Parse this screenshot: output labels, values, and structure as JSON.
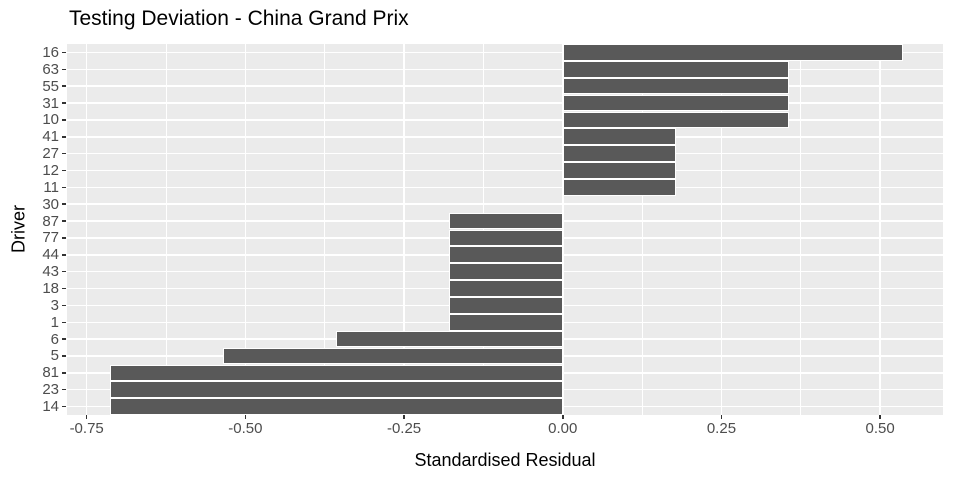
{
  "chart_data": {
    "type": "bar",
    "orientation": "horizontal",
    "title": "Testing Deviation - China Grand Prix",
    "xlabel": "Standardised Residual",
    "ylabel": "Driver",
    "categories": [
      "16",
      "63",
      "55",
      "31",
      "10",
      "41",
      "27",
      "12",
      "11",
      "30",
      "87",
      "77",
      "44",
      "43",
      "18",
      "3",
      "1",
      "6",
      "5",
      "81",
      "23",
      "14"
    ],
    "values": [
      0.536,
      0.357,
      0.357,
      0.357,
      0.357,
      0.179,
      0.179,
      0.179,
      0.179,
      0,
      -0.179,
      -0.179,
      -0.179,
      -0.179,
      -0.179,
      -0.179,
      -0.179,
      -0.357,
      -0.536,
      -0.714,
      -0.714,
      -0.714
    ],
    "x_tick_values": [
      -0.75,
      -0.5,
      -0.25,
      0,
      0.25,
      0.5
    ],
    "x_tick_labels": [
      "-0.75",
      "-0.50",
      "-0.25",
      "0.00",
      "0.25",
      "0.50"
    ],
    "xlim": [
      -0.781,
      0.599
    ],
    "legend": "none",
    "grid": {
      "vertical_major": true,
      "vertical_minor": true,
      "horizontal_major": true
    },
    "colors": {
      "bar_fill": "#595959",
      "bar_border": "#FFFFFF",
      "panel_background": "#EBEBEB",
      "gridline": "#FFFFFF",
      "axis_text": "#4D4D4D",
      "axis_title": "#000000",
      "plot_title": "#000000",
      "tick_mark": "#333333",
      "page_background": "#FFFFFF"
    }
  }
}
